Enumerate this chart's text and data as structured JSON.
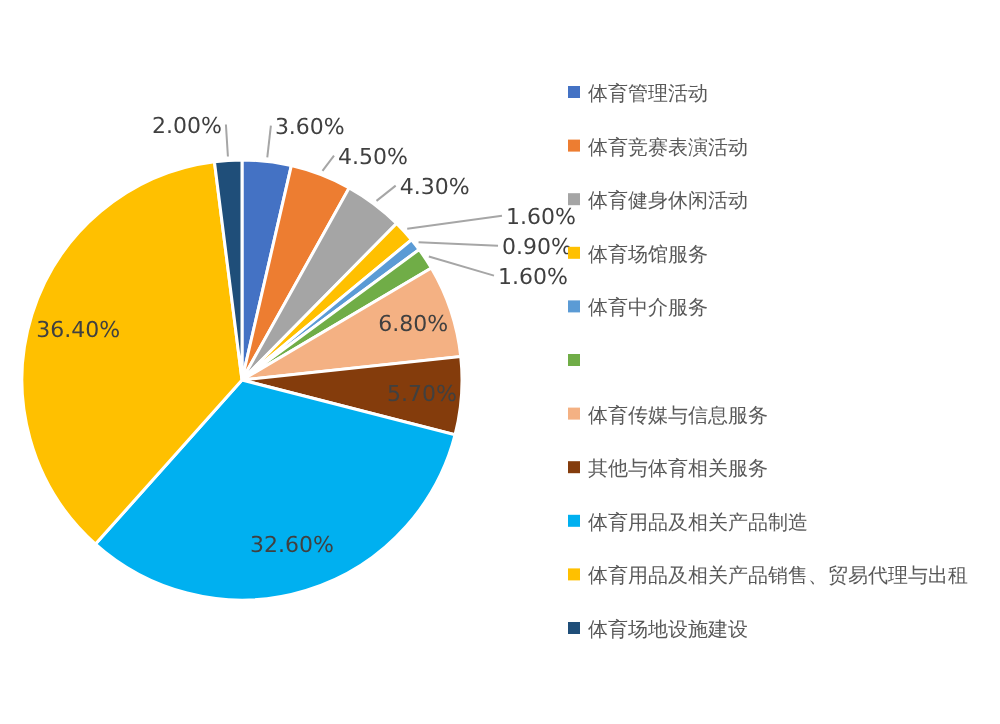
{
  "chart_data": {
    "type": "pie",
    "data_labels": true,
    "legend": "right",
    "categories": [
      "体育管理活动",
      "体育竞赛表演活动",
      "体育健身休闲活动",
      "体育场馆服务",
      "体育中介服务",
      null,
      "体育传媒与信息服务",
      "其他与体育相关服务",
      "体育用品及相关产品制造",
      "体育用品及相关产品销售、贸易代理与出租",
      "体育场地设施建设"
    ],
    "values": [
      3.6,
      4.5,
      4.3,
      1.6,
      0.9,
      1.6,
      6.8,
      5.7,
      32.6,
      36.4,
      2.0
    ],
    "value_labels": [
      "3.60%",
      "4.50%",
      "4.30%",
      "1.60%",
      "0.90%",
      "1.60%",
      "6.80%",
      "5.70%",
      "32.60%",
      "36.40%",
      "2.00%"
    ],
    "colors": [
      "#4472c4",
      "#ed7d31",
      "#a5a5a5",
      "#ffc000",
      "#5b9bd5",
      "#70ad47",
      "#f4b183",
      "#843c0c",
      "#00b0f0",
      "#ffc000",
      "#1f4e79"
    ]
  }
}
